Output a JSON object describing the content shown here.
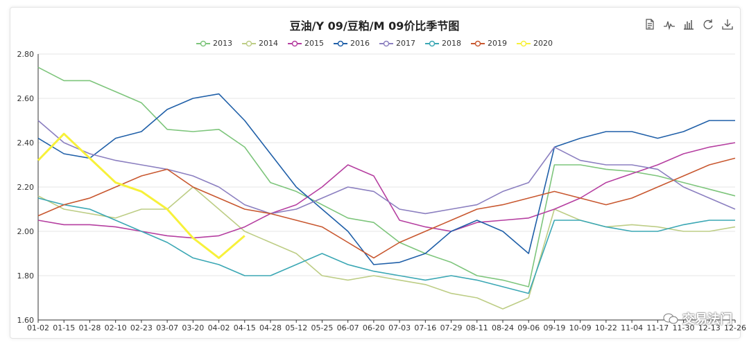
{
  "watermark": "交易法门",
  "toolbox": [
    {
      "name": "data-view-icon"
    },
    {
      "name": "line-chart-icon"
    },
    {
      "name": "bar-chart-icon"
    },
    {
      "name": "refresh-icon"
    },
    {
      "name": "download-icon"
    }
  ],
  "chart_data": {
    "type": "line",
    "title": "豆油/Y 09/豆粕/M 09价比季节图",
    "xlabel": "",
    "ylabel": "",
    "ylim": [
      1.6,
      2.8
    ],
    "yticks": [
      "1.60",
      "1.80",
      "2.00",
      "2.20",
      "2.40",
      "2.60",
      "2.80"
    ],
    "x": [
      "01-02",
      "01-15",
      "01-28",
      "02-10",
      "02-23",
      "03-07",
      "03-20",
      "04-02",
      "04-15",
      "04-28",
      "05-12",
      "05-25",
      "06-07",
      "06-20",
      "07-03",
      "07-16",
      "07-29",
      "08-11",
      "08-24",
      "09-06",
      "09-19",
      "10-09",
      "10-22",
      "11-04",
      "11-17",
      "11-30",
      "12-13",
      "12-26"
    ],
    "grid": true,
    "legend": "top-center",
    "series": [
      {
        "name": "2013",
        "color": "#7dc57b",
        "values": [
          2.74,
          2.68,
          2.68,
          2.63,
          2.58,
          2.46,
          2.45,
          2.46,
          2.38,
          2.22,
          2.18,
          2.12,
          2.06,
          2.04,
          1.95,
          1.9,
          1.86,
          1.8,
          1.78,
          1.75,
          2.3,
          2.3,
          2.28,
          2.27,
          2.25,
          2.22,
          2.19,
          2.16
        ]
      },
      {
        "name": "2014",
        "color": "#bdcd85",
        "values": [
          2.16,
          2.1,
          2.08,
          2.06,
          2.1,
          2.1,
          2.2,
          2.1,
          2.0,
          1.95,
          1.9,
          1.8,
          1.78,
          1.8,
          1.78,
          1.76,
          1.72,
          1.7,
          1.65,
          1.7,
          2.1,
          2.05,
          2.02,
          2.03,
          2.02,
          2.0,
          2.0,
          2.02
        ]
      },
      {
        "name": "2015",
        "color": "#b53ea0",
        "values": [
          2.05,
          2.03,
          2.03,
          2.02,
          2.0,
          1.98,
          1.97,
          1.98,
          2.02,
          2.08,
          2.12,
          2.2,
          2.3,
          2.25,
          2.05,
          2.02,
          2.0,
          2.04,
          2.05,
          2.06,
          2.1,
          2.15,
          2.22,
          2.26,
          2.3,
          2.35,
          2.38,
          2.4
        ]
      },
      {
        "name": "2016",
        "color": "#1f5fa8",
        "values": [
          2.42,
          2.35,
          2.33,
          2.42,
          2.45,
          2.55,
          2.6,
          2.62,
          2.5,
          2.35,
          2.2,
          2.1,
          2.0,
          1.85,
          1.86,
          1.9,
          2.0,
          2.05,
          2.0,
          1.9,
          2.38,
          2.42,
          2.45,
          2.45,
          2.42,
          2.45,
          2.5,
          2.5
        ]
      },
      {
        "name": "2017",
        "color": "#8b7fc0",
        "values": [
          2.5,
          2.4,
          2.35,
          2.32,
          2.3,
          2.28,
          2.25,
          2.2,
          2.12,
          2.08,
          2.1,
          2.15,
          2.2,
          2.18,
          2.1,
          2.08,
          2.1,
          2.12,
          2.18,
          2.22,
          2.38,
          2.32,
          2.3,
          2.3,
          2.28,
          2.2,
          2.15,
          2.1
        ]
      },
      {
        "name": "2018",
        "color": "#3aa7b4",
        "values": [
          2.15,
          2.12,
          2.1,
          2.05,
          2.0,
          1.95,
          1.88,
          1.85,
          1.8,
          1.8,
          1.85,
          1.9,
          1.85,
          1.82,
          1.8,
          1.78,
          1.8,
          1.78,
          1.75,
          1.72,
          2.05,
          2.05,
          2.02,
          2.0,
          2.0,
          2.03,
          2.05,
          2.05
        ]
      },
      {
        "name": "2019",
        "color": "#c8572f",
        "values": [
          2.07,
          2.12,
          2.15,
          2.2,
          2.25,
          2.28,
          2.2,
          2.15,
          2.1,
          2.08,
          2.05,
          2.02,
          1.95,
          1.88,
          1.95,
          2.0,
          2.05,
          2.1,
          2.12,
          2.15,
          2.18,
          2.15,
          2.12,
          2.15,
          2.2,
          2.25,
          2.3,
          2.33
        ]
      },
      {
        "name": "2020",
        "color": "#f7f13a",
        "values": [
          2.32,
          2.44,
          2.33,
          2.22,
          2.18,
          2.1,
          1.97,
          1.88,
          1.98,
          null,
          null,
          null,
          null,
          null,
          null,
          null,
          null,
          null,
          null,
          null,
          null,
          null,
          null,
          null,
          null,
          null,
          null,
          null
        ]
      }
    ]
  }
}
